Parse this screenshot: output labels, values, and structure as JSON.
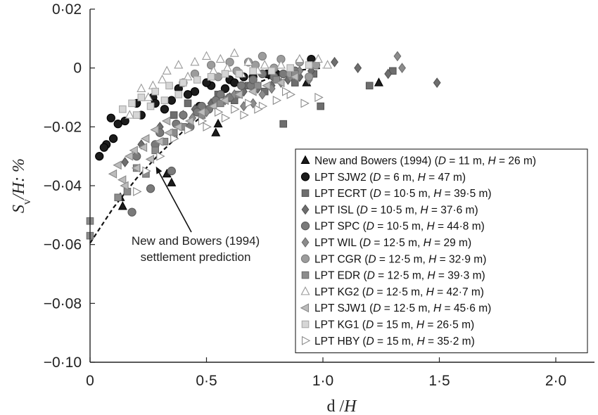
{
  "chart_data": {
    "type": "scatter",
    "title": "",
    "xlabel": {
      "main": "d",
      "slash": " /",
      "var": "H"
    },
    "ylabel": {
      "main": "S",
      "sub": "v",
      "rest": "/H: %"
    },
    "xlim": [
      0,
      2.1
    ],
    "ylim": [
      -0.1,
      0.02
    ],
    "xticks": [
      {
        "v": 0,
        "label": "0"
      },
      {
        "v": 0.5,
        "label": "0·5"
      },
      {
        "v": 1.0,
        "label": "1·0"
      },
      {
        "v": 1.5,
        "label": "1·5"
      },
      {
        "v": 2.0,
        "label": "2·0"
      }
    ],
    "yticks": [
      {
        "v": 0.02,
        "label": "0·02"
      },
      {
        "v": 0,
        "label": "0"
      },
      {
        "v": -0.02,
        "label": "−0·02"
      },
      {
        "v": -0.04,
        "label": "−0·04"
      },
      {
        "v": -0.06,
        "label": "−0·06"
      },
      {
        "v": -0.08,
        "label": "−0·08"
      },
      {
        "v": -0.1,
        "label": "−0·10"
      }
    ],
    "legend_position": "bottom-right",
    "annotation": {
      "lines": [
        "New and Bowers (1994)",
        "settlement prediction"
      ],
      "arrow_to": [
        0.28,
        -0.033
      ]
    },
    "prediction_curve": {
      "name": "New and Bowers (1994) settlement prediction",
      "x": [
        0,
        0.1,
        0.2,
        0.3,
        0.4,
        0.5,
        0.6,
        0.7,
        0.8,
        0.9,
        1.0
      ],
      "y": [
        -0.0595,
        -0.0475,
        -0.0375,
        -0.029,
        -0.0215,
        -0.0152,
        -0.0098,
        -0.0056,
        -0.0026,
        -0.0007,
        0.0
      ]
    },
    "series": [
      {
        "name": "New and Bowers (1994) (D = 11 m, H = 26 m)",
        "label_parts": [
          [
            "New and Bowers (1994) (",
            0
          ],
          [
            "D",
            1
          ],
          [
            " = 11 m, ",
            0
          ],
          [
            "H",
            1
          ],
          [
            " = 26 m)",
            0
          ]
        ],
        "marker": "triangle-up",
        "fill": "#1c1c1c",
        "stroke": "#000000",
        "x": [
          0.14,
          0.35,
          0.33,
          0.54,
          0.93,
          1.24,
          0.13,
          0.55
        ],
        "y": [
          -0.047,
          -0.039,
          -0.036,
          -0.022,
          -0.005,
          -0.005,
          -0.044,
          -0.019
        ]
      },
      {
        "name": "LPT SJW2 (D = 6 m, H = 47 m)",
        "label_parts": [
          [
            "LPT SJW2 (",
            0
          ],
          [
            "D",
            1
          ],
          [
            " = 6 m, ",
            0
          ],
          [
            "H",
            1
          ],
          [
            " = 47 m)",
            0
          ]
        ],
        "marker": "circle",
        "fill": "#1c1c1c",
        "stroke": "#000000",
        "x": [
          0.04,
          0.07,
          0.09,
          0.12,
          0.1,
          0.2,
          0.27,
          0.32,
          0.38,
          0.45,
          0.52,
          0.6,
          0.7,
          0.8,
          0.88,
          0.95,
          0.22,
          0.35,
          0.42,
          0.5,
          0.58,
          0.66,
          0.76,
          0.06,
          0.15,
          0.28,
          0.47,
          0.62
        ],
        "y": [
          -0.03,
          -0.026,
          -0.017,
          -0.019,
          -0.024,
          -0.012,
          -0.01,
          -0.014,
          -0.007,
          -0.008,
          -0.006,
          -0.004,
          -0.003,
          -0.002,
          -0.001,
          0.003,
          -0.016,
          -0.011,
          -0.009,
          -0.005,
          -0.007,
          -0.003,
          -0.002,
          -0.027,
          -0.018,
          -0.012,
          -0.013,
          -0.005
        ]
      },
      {
        "name": "LPT ECRT (D = 10·5 m, H = 39·5 m)",
        "label_parts": [
          [
            "LPT ECRT (",
            0
          ],
          [
            "D",
            1
          ],
          [
            " = 10·5 m, ",
            0
          ],
          [
            "H",
            1
          ],
          [
            " = 39·5 m)",
            0
          ]
        ],
        "marker": "square",
        "fill": "#6e6e6e",
        "stroke": "#555555",
        "x": [
          0.83,
          0.99,
          1.2,
          1.3,
          0.47,
          0.62,
          0.75,
          0.88,
          0.96,
          0.55,
          0.68,
          0.36,
          0.42
        ],
        "y": [
          -0.019,
          -0.013,
          -0.006,
          -0.001,
          -0.014,
          -0.011,
          -0.008,
          -0.005,
          -0.002,
          -0.009,
          -0.006,
          -0.016,
          -0.012
        ]
      },
      {
        "name": "LPT ISL (D = 10·5 m, H = 37·6 m)",
        "label_parts": [
          [
            "LPT ISL (",
            0
          ],
          [
            "D",
            1
          ],
          [
            " = 10·5 m, ",
            0
          ],
          [
            "H",
            1
          ],
          [
            " = 37·6 m)",
            0
          ]
        ],
        "marker": "diamond",
        "fill": "#6e6e6e",
        "stroke": "#555555",
        "x": [
          1.49,
          1.28,
          1.15,
          1.05,
          0.95,
          0.85,
          0.72,
          0.6,
          0.45,
          0.3,
          0.22,
          0.15,
          0.4,
          0.52,
          0.66,
          0.78,
          0.9
        ],
        "y": [
          -0.005,
          -0.002,
          0.0,
          0.002,
          -0.001,
          -0.004,
          -0.007,
          -0.01,
          -0.014,
          -0.02,
          -0.026,
          -0.032,
          -0.016,
          -0.012,
          -0.008,
          -0.006,
          -0.003
        ]
      },
      {
        "name": "LPT SPC (D = 10·5 m, H = 44·8 m)",
        "label_parts": [
          [
            "LPT SPC (",
            0
          ],
          [
            "D",
            1
          ],
          [
            " = 10·5 m, ",
            0
          ],
          [
            "H",
            1
          ],
          [
            " = 44·8 m)",
            0
          ]
        ],
        "marker": "circle",
        "fill": "#7a7a7a",
        "stroke": "#5c5c5c",
        "x": [
          0.18,
          0.26,
          0.35,
          0.43,
          0.51,
          0.6,
          0.69,
          0.79,
          0.88,
          0.3,
          0.4,
          0.48,
          0.56,
          0.65,
          0.74,
          0.83,
          0.2,
          0.28,
          0.37,
          0.46,
          0.54,
          0.7
        ],
        "y": [
          -0.049,
          -0.041,
          -0.035,
          -0.02,
          -0.014,
          -0.01,
          -0.006,
          -0.003,
          -0.001,
          -0.022,
          -0.016,
          -0.013,
          -0.009,
          -0.006,
          -0.002,
          -0.002,
          -0.03,
          -0.026,
          -0.019,
          -0.015,
          -0.011,
          -0.004
        ]
      },
      {
        "name": "LPT WIL (D = 12·5 m, H = 29 m)",
        "label_parts": [
          [
            "LPT WIL (",
            0
          ],
          [
            "D",
            1
          ],
          [
            " = 12·5 m, ",
            0
          ],
          [
            "H",
            1
          ],
          [
            " = 29 m)",
            0
          ]
        ],
        "marker": "diamond",
        "fill": "#8c8c8c",
        "stroke": "#6e6e6e",
        "x": [
          1.32,
          1.34,
          0.62,
          0.7,
          0.78,
          0.86,
          0.94,
          0.5,
          0.58,
          0.66,
          0.74,
          0.82,
          0.9,
          0.44
        ],
        "y": [
          0.004,
          0.0,
          -0.009,
          -0.012,
          -0.007,
          -0.003,
          -0.004,
          -0.015,
          -0.011,
          -0.013,
          -0.009,
          -0.005,
          -0.001,
          -0.017
        ]
      },
      {
        "name": "LPT CGR (D = 12·5 m, H = 32·9 m)",
        "label_parts": [
          [
            "LPT CGR (",
            0
          ],
          [
            "D",
            1
          ],
          [
            " = 12·5 m, ",
            0
          ],
          [
            "H",
            1
          ],
          [
            " = 32·9 m)",
            0
          ]
        ],
        "marker": "circle",
        "fill": "#9c9c9c",
        "stroke": "#7c7c7c",
        "x": [
          0.45,
          0.52,
          0.6,
          0.68,
          0.74,
          0.82,
          0.9,
          0.97,
          0.55,
          0.63,
          0.71,
          0.79,
          0.86,
          0.94,
          0.4
        ],
        "y": [
          -0.002,
          0.001,
          0.002,
          0.002,
          0.004,
          0.003,
          0.002,
          0.001,
          -0.003,
          -0.001,
          0.001,
          0.0,
          -0.002,
          -0.003,
          -0.005
        ]
      },
      {
        "name": "LPT EDR (D = 12·5 m, H = 39·3 m)",
        "label_parts": [
          [
            "LPT EDR (",
            0
          ],
          [
            "D",
            1
          ],
          [
            " = 12·5 m, ",
            0
          ],
          [
            "H",
            1
          ],
          [
            " = 39·3 m)",
            0
          ]
        ],
        "marker": "square",
        "fill": "#8c8c8c",
        "stroke": "#6c6c6c",
        "x": [
          0.0,
          0.0,
          0.16,
          0.24,
          0.32,
          0.4,
          0.48,
          0.56,
          0.64,
          0.72,
          0.8,
          0.88,
          0.12,
          0.2,
          0.28,
          0.36
        ],
        "y": [
          -0.052,
          -0.057,
          -0.042,
          -0.036,
          -0.025,
          -0.02,
          -0.016,
          -0.012,
          -0.009,
          -0.006,
          -0.004,
          -0.002,
          -0.044,
          -0.034,
          -0.028,
          -0.022
        ]
      },
      {
        "name": "LPT KG2 (D = 12·5 m, H = 42·7 m)",
        "label_parts": [
          [
            "LPT KG2 (",
            0
          ],
          [
            "D",
            1
          ],
          [
            " = 12·5 m, ",
            0
          ],
          [
            "H",
            1
          ],
          [
            " = 42·7 m)",
            0
          ]
        ],
        "marker": "triangle-up-open",
        "fill": "#ffffff",
        "stroke": "#9a9a9a",
        "x": [
          0.17,
          0.22,
          0.27,
          0.33,
          0.38,
          0.45,
          0.5,
          0.56,
          0.62,
          0.68,
          0.75,
          0.82,
          0.9,
          0.98,
          1.02,
          0.25,
          0.31,
          0.42,
          0.53,
          0.59,
          0.65,
          0.72
        ],
        "y": [
          -0.016,
          -0.007,
          -0.006,
          -0.001,
          0.001,
          0.002,
          0.004,
          0.003,
          0.005,
          0.002,
          0.001,
          0.001,
          0.003,
          0.003,
          0.001,
          -0.01,
          -0.004,
          -0.003,
          -0.001,
          0.0,
          -0.002,
          -0.001
        ]
      },
      {
        "name": "LPT SJW1 (D = 12·5 m, H = 45·6 m)",
        "label_parts": [
          [
            "LPT SJW1 (",
            0
          ],
          [
            "D",
            1
          ],
          [
            " = 12·5 m, ",
            0
          ],
          [
            "H",
            1
          ],
          [
            " = 45·6 m)",
            0
          ]
        ],
        "marker": "triangle-left",
        "fill": "#bcbcbc",
        "stroke": "#8a8a8a",
        "x": [
          0.1,
          0.12,
          0.14,
          0.17,
          0.2,
          0.23,
          0.26,
          0.3,
          0.34,
          0.38,
          0.43,
          0.48,
          0.53,
          0.58,
          0.64,
          0.7,
          0.76,
          0.82,
          0.88,
          0.15,
          0.19,
          0.24,
          0.28,
          0.33
        ],
        "y": [
          -0.036,
          -0.033,
          -0.038,
          -0.03,
          -0.034,
          -0.027,
          -0.031,
          -0.025,
          -0.022,
          -0.02,
          -0.018,
          -0.015,
          -0.013,
          -0.011,
          -0.009,
          -0.008,
          -0.006,
          -0.005,
          -0.003,
          -0.04,
          -0.028,
          -0.024,
          -0.021,
          -0.018
        ]
      },
      {
        "name": "LPT KG1 (D = 15 m, H = 26·5 m)",
        "label_parts": [
          [
            "LPT KG1 (",
            0
          ],
          [
            "D",
            1
          ],
          [
            " = 15 m, ",
            0
          ],
          [
            "H",
            1
          ],
          [
            " = 26·5 m)",
            0
          ]
        ],
        "marker": "square",
        "fill": "#d6d6d6",
        "stroke": "#a8a8a8",
        "x": [
          0.14,
          0.18,
          0.22,
          0.28,
          0.34,
          0.4,
          0.46,
          0.52,
          0.58,
          0.64,
          0.7,
          0.78,
          0.86,
          0.94,
          0.2,
          0.26,
          0.32,
          0.38
        ],
        "y": [
          -0.014,
          -0.012,
          -0.01,
          -0.008,
          -0.006,
          -0.005,
          -0.004,
          -0.003,
          -0.002,
          -0.002,
          -0.001,
          -0.001,
          0.0,
          0.001,
          -0.016,
          -0.013,
          -0.011,
          -0.009
        ]
      },
      {
        "name": "LPT HBY (D = 15 m, H = 35·2 m)",
        "label_parts": [
          [
            "LPT HBY (",
            0
          ],
          [
            "D",
            1
          ],
          [
            " = 15 m, ",
            0
          ],
          [
            "H",
            1
          ],
          [
            " = 35·2 m)",
            0
          ]
        ],
        "marker": "triangle-right-open",
        "fill": "#ffffff",
        "stroke": "#8a8a8a",
        "x": [
          0.2,
          0.24,
          0.3,
          0.36,
          0.42,
          0.48,
          0.55,
          0.62,
          0.68,
          0.74,
          0.8,
          0.86,
          0.92,
          0.98,
          0.5,
          0.58,
          0.66,
          0.72,
          0.84
        ],
        "y": [
          -0.042,
          -0.035,
          -0.03,
          -0.024,
          -0.021,
          -0.018,
          -0.015,
          -0.014,
          -0.012,
          -0.013,
          -0.011,
          -0.009,
          -0.012,
          -0.01,
          -0.02,
          -0.017,
          -0.016,
          -0.014,
          -0.008
        ]
      }
    ]
  }
}
